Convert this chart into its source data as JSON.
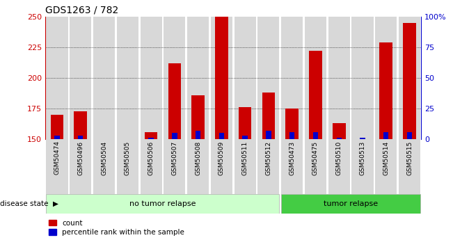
{
  "title": "GDS1263 / 782",
  "samples": [
    "GSM50474",
    "GSM50496",
    "GSM50504",
    "GSM50505",
    "GSM50506",
    "GSM50507",
    "GSM50508",
    "GSM50509",
    "GSM50511",
    "GSM50512",
    "GSM50473",
    "GSM50475",
    "GSM50510",
    "GSM50513",
    "GSM50514",
    "GSM50515"
  ],
  "count_values": [
    170,
    173,
    150,
    150,
    156,
    212,
    186,
    250,
    176,
    188,
    175,
    222,
    163,
    150,
    229,
    245
  ],
  "percentile_values": [
    3,
    3,
    0,
    0,
    1,
    5,
    7,
    5,
    3,
    7,
    6,
    6,
    1,
    1,
    6,
    6
  ],
  "base_value": 150,
  "ymin": 150,
  "ymax": 250,
  "yticks": [
    150,
    175,
    200,
    225,
    250
  ],
  "right_yticks": [
    0,
    25,
    50,
    75,
    100
  ],
  "right_ytick_labels": [
    "0",
    "25",
    "50",
    "75",
    "100%"
  ],
  "group1_label": "no tumor relapse",
  "group2_label": "tumor relapse",
  "group1_count": 10,
  "group2_count": 6,
  "disease_state_label": "disease state",
  "legend_count_label": "count",
  "legend_pct_label": "percentile rank within the sample",
  "bar_color": "#cc0000",
  "pct_color": "#0000cc",
  "group1_bg": "#ccffcc",
  "group2_bg": "#44cc44",
  "bar_bg": "#d8d8d8",
  "title_color": "#000000",
  "axis_color_left": "#cc0000",
  "axis_color_right": "#0000cc",
  "bar_width": 0.55,
  "pct_bar_width": 0.22
}
